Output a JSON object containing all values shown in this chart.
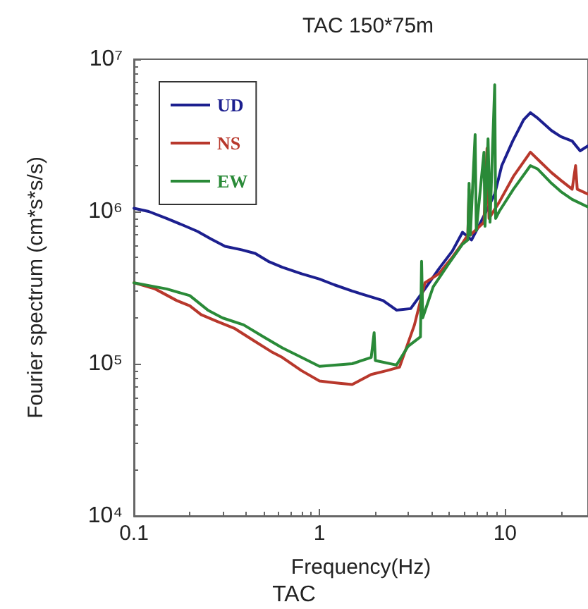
{
  "chart_data": {
    "type": "line",
    "title": "TAC 150*75m",
    "xlabel": "Frequency(Hz)",
    "ylabel": "Fourier spectrum (cm*s*s/s)",
    "annotations": [
      "TAC"
    ],
    "log": "xy",
    "xlim": [
      0.1,
      28
    ],
    "ylim": [
      10000,
      10000000
    ],
    "xticks": [
      0.1,
      1,
      10
    ],
    "yticks": [
      {
        "value": 10000,
        "label": "10⁴"
      },
      {
        "value": 100000,
        "label": "10⁵"
      },
      {
        "value": 1000000,
        "label": "10⁶"
      },
      {
        "value": 10000000,
        "label": "10⁷"
      }
    ],
    "grid": false,
    "legend": "top left",
    "marker": "none",
    "line_style": "solid",
    "series": [
      {
        "name": "UD",
        "color": "#1c1f8f",
        "x": [
          0.1,
          0.12,
          0.15,
          0.185,
          0.22,
          0.26,
          0.31,
          0.38,
          0.45,
          0.53,
          0.63,
          0.8,
          1.0,
          1.2,
          1.5,
          1.8,
          2.2,
          2.6,
          3.1,
          3.7,
          4.4,
          5.2,
          5.9,
          6.6,
          7.4,
          8.8,
          9.6,
          11,
          12.6,
          13.7,
          15,
          17.8,
          20,
          23,
          25.4,
          28
        ],
        "values": [
          1050000,
          1000000,
          900000,
          810000,
          740000,
          660000,
          590000,
          560000,
          530000,
          470000,
          430000,
          390000,
          360000,
          330000,
          300000,
          280000,
          260000,
          225000,
          230000,
          310000,
          420000,
          550000,
          730000,
          650000,
          850000,
          1300000,
          2000000,
          2900000,
          4000000,
          4450000,
          4100000,
          3400000,
          3100000,
          2900000,
          2500000,
          2700000
        ]
      },
      {
        "name": "NS",
        "color": "#b8382c",
        "x": [
          0.1,
          0.13,
          0.17,
          0.2,
          0.23,
          0.28,
          0.35,
          0.45,
          0.55,
          0.63,
          0.8,
          1.0,
          1.2,
          1.5,
          1.9,
          2.3,
          2.7,
          3.25,
          3.7,
          4.4,
          5.2,
          5.9,
          6.3,
          6.4,
          6.5,
          7.7,
          8.0,
          8.2,
          9.3,
          11.1,
          13.7,
          15,
          17.8,
          20,
          23,
          24,
          24.5,
          28
        ],
        "values": [
          340000,
          310000,
          260000,
          240000,
          210000,
          190000,
          170000,
          140000,
          120000,
          110000,
          90000,
          77000,
          75000,
          73000,
          85000,
          90000,
          95000,
          180000,
          340000,
          390000,
          500000,
          620000,
          700000,
          1400000,
          700000,
          850000,
          2600000,
          900000,
          1150000,
          1700000,
          2450000,
          2200000,
          1800000,
          1600000,
          1400000,
          2000000,
          1400000,
          1300000
        ]
      },
      {
        "name": "EW",
        "color": "#2a8a38",
        "x": [
          0.1,
          0.15,
          0.2,
          0.25,
          0.3,
          0.39,
          0.5,
          0.63,
          0.8,
          1.0,
          1.5,
          1.9,
          1.97,
          2.0,
          2.6,
          3.0,
          3.5,
          3.55,
          3.6,
          4.1,
          4.95,
          5.9,
          6.3,
          6.4,
          6.5,
          6.9,
          7.0,
          7.7,
          7.8,
          8.1,
          8.3,
          8.8,
          8.9,
          9.3,
          11.1,
          13.7,
          15,
          17.8,
          20,
          23,
          28
        ],
        "values": [
          340000,
          310000,
          280000,
          225000,
          200000,
          180000,
          150000,
          127000,
          110000,
          96000,
          100000,
          110000,
          160000,
          105000,
          98000,
          130000,
          150000,
          470000,
          200000,
          320000,
          450000,
          610000,
          650000,
          1530000,
          700000,
          3200000,
          750000,
          2450000,
          800000,
          3000000,
          850000,
          6800000,
          900000,
          1000000,
          1400000,
          2000000,
          1900000,
          1530000,
          1350000,
          1200000,
          1070000
        ]
      }
    ]
  }
}
